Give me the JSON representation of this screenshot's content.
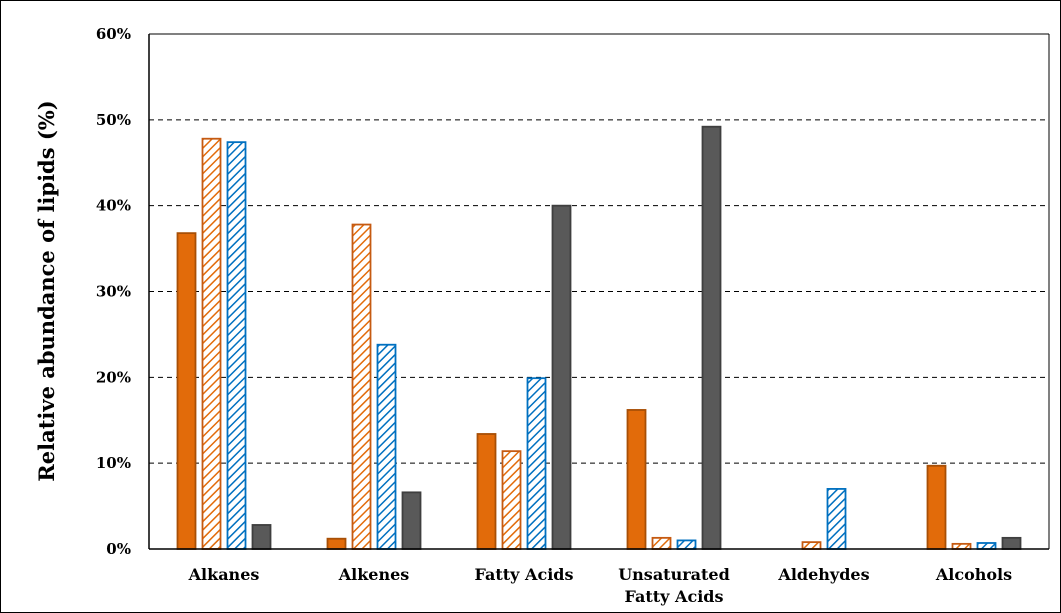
{
  "chart_data": {
    "type": "bar",
    "ylabel": "Relative abundance of lipids (%)",
    "xlabel": "",
    "ylim": [
      0,
      60
    ],
    "yticks": [
      "0%",
      "10%",
      "20%",
      "30%",
      "40%",
      "50%",
      "60%"
    ],
    "grid": "dashed horizontal",
    "legend": "none",
    "categories": [
      [
        "Alkanes"
      ],
      [
        "Alkenes"
      ],
      [
        "Fatty Acids"
      ],
      [
        "Unsaturated",
        "Fatty Acids"
      ],
      [
        "Aldehydes"
      ],
      [
        "Alcohols"
      ]
    ],
    "series": [
      {
        "style": "solid",
        "color": "#e26b0a",
        "stroke": "#a84f06",
        "values": [
          36.8,
          1.2,
          13.4,
          16.2,
          0,
          9.7
        ]
      },
      {
        "style": "hatched",
        "color": "#e26b0a",
        "stroke": "#c55a11",
        "values": [
          47.8,
          37.8,
          11.4,
          1.3,
          0.8,
          0.6
        ]
      },
      {
        "style": "hatched",
        "color": "#0070c0",
        "stroke": "#0070c0",
        "values": [
          47.4,
          23.8,
          19.9,
          1.0,
          7.0,
          0.7
        ]
      },
      {
        "style": "solid",
        "color": "#595959",
        "stroke": "#3f3f3f",
        "values": [
          2.8,
          6.6,
          40.0,
          49.2,
          0,
          1.3
        ]
      }
    ]
  }
}
